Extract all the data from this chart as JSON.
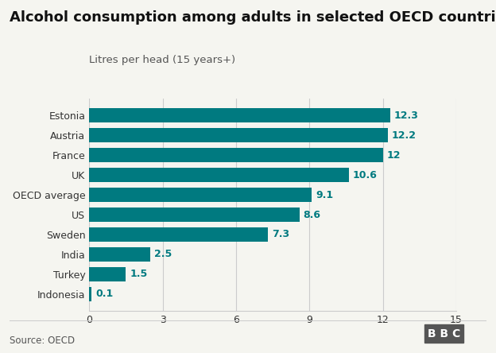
{
  "title": "Alcohol consumption among adults in selected OECD countries",
  "subtitle": "Litres per head (15 years+)",
  "source": "Source: OECD",
  "categories": [
    "Indonesia",
    "Turkey",
    "India",
    "Sweden",
    "US",
    "OECD average",
    "UK",
    "France",
    "Austria",
    "Estonia"
  ],
  "values": [
    0.1,
    1.5,
    2.5,
    7.3,
    8.6,
    9.1,
    10.6,
    12.0,
    12.2,
    12.3
  ],
  "bar_color": "#007a80",
  "label_color": "#007a80",
  "background_color": "#f5f5f0",
  "text_color": "#333333",
  "subtitle_color": "#555555",
  "xlim": [
    0,
    15
  ],
  "xticks": [
    0,
    3,
    6,
    9,
    12,
    15
  ],
  "title_fontsize": 13,
  "subtitle_fontsize": 9.5,
  "label_fontsize": 9,
  "tick_fontsize": 9,
  "source_fontsize": 8.5,
  "bbc_text": "BBC"
}
